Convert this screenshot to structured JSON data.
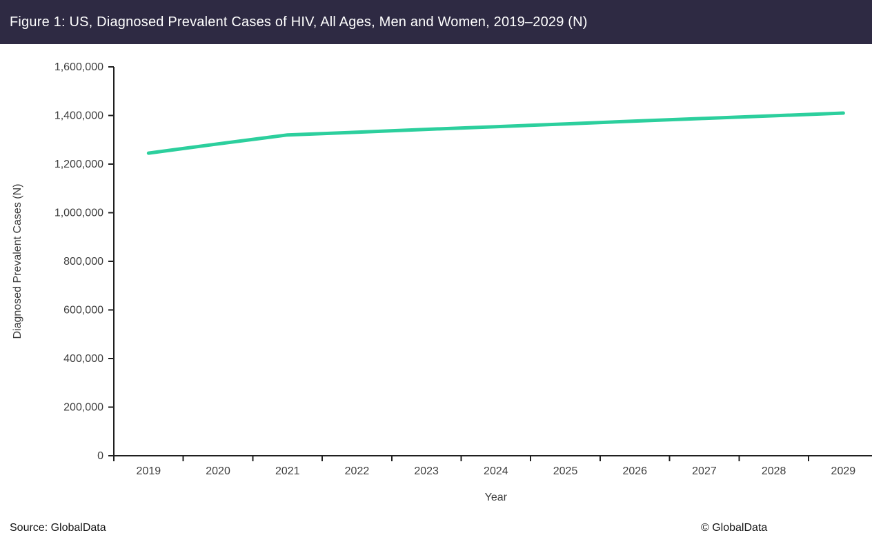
{
  "header": {
    "title": "Figure 1: US, Diagnosed Prevalent Cases of HIV, All Ages, Men and Women, 2019–2029 (N)",
    "bg_color": "#2e2a43",
    "text_color": "#ffffff"
  },
  "footer": {
    "source_text": "Source: GlobalData",
    "copyright_text": "© GlobalData"
  },
  "chart_data": {
    "type": "line",
    "title": "Figure 1: US, Diagnosed Prevalent Cases of HIV, All Ages, Men and Women, 2019–2029 (N)",
    "xlabel": "Year",
    "ylabel": "Diagnosed Prevalent Cases (N)",
    "categories": [
      "2019",
      "2020",
      "2021",
      "2022",
      "2023",
      "2024",
      "2025",
      "2026",
      "2027",
      "2028",
      "2029"
    ],
    "series": [
      {
        "name": "Diagnosed Prevalent Cases of HIV",
        "color": "#2ccf9d",
        "values": [
          1245000,
          1283000,
          1320000,
          1331000,
          1343000,
          1354000,
          1365000,
          1377000,
          1388000,
          1399000,
          1410000
        ]
      }
    ],
    "ylim": [
      0,
      1600000
    ],
    "y_tick_step": 200000,
    "y_tick_labels": [
      "0",
      "200,000",
      "400,000",
      "600,000",
      "800,000",
      "1,000,000",
      "1,200,000",
      "1,400,000",
      "1,600,000"
    ],
    "grid": false,
    "legend_position": "none",
    "axis_color": "#1f1f1f",
    "label_color": "#3d3d3d"
  }
}
